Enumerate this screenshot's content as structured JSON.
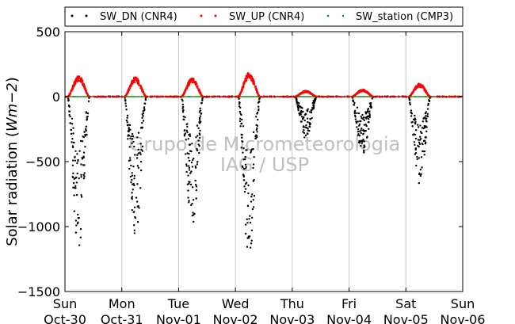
{
  "chart_data": {
    "type": "scatter",
    "ylabel_text": "Solar radiation (",
    "ylabel_unit": "Wm−2",
    "ylabel_close": ")",
    "ylim": [
      -1500,
      500
    ],
    "yticks": [
      500,
      0,
      -500,
      -1000,
      -1500
    ],
    "ytick_labels": [
      "500",
      "0",
      "−500",
      "−1000",
      "−1500"
    ],
    "xticks": [
      {
        "day": "Sun",
        "date": "Oct-30"
      },
      {
        "day": "Mon",
        "date": "Oct-31"
      },
      {
        "day": "Tue",
        "date": "Nov-01"
      },
      {
        "day": "Wed",
        "date": "Nov-02"
      },
      {
        "day": "Thu",
        "date": "Nov-03"
      },
      {
        "day": "Fri",
        "date": "Nov-04"
      },
      {
        "day": "Sat",
        "date": "Nov-05"
      },
      {
        "day": "Sun",
        "date": "Nov-06"
      }
    ],
    "grid": "vertical",
    "zero_line": true,
    "legend_position": "top",
    "watermark": [
      "Grupo de Micrometeorologia",
      "IAG / USP"
    ],
    "series": [
      {
        "name": "SW_DN (CNR4)",
        "color": "#000000",
        "daily_min": [
          -1190,
          -1085,
          -1020,
          -1260,
          -330,
          -450,
          -680
        ]
      },
      {
        "name": "SW_UP (CNR4)",
        "color": "#ff0000",
        "daily_max": [
          160,
          150,
          145,
          185,
          45,
          55,
          100
        ]
      },
      {
        "name": "SW_station (CMP3)",
        "color": "#008000",
        "daily_max": [
          0,
          0,
          0,
          0,
          0,
          0,
          0
        ]
      }
    ]
  }
}
